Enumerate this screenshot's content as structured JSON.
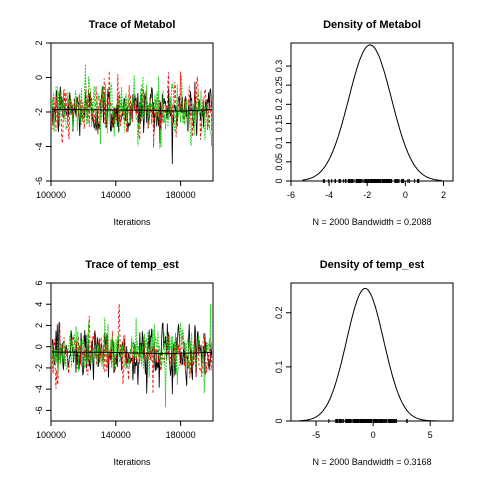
{
  "chart_data": [
    {
      "type": "line",
      "title": "Trace of Metabol",
      "xlabel": "Iterations",
      "xlim": [
        100000,
        200000
      ],
      "ylim": [
        -6,
        2
      ],
      "x_ticks": [
        100000,
        140000,
        180000
      ],
      "y_ticks": [
        -6,
        -4,
        -2,
        0,
        2
      ],
      "series": [
        {
          "chain": 1,
          "color": "#000000",
          "center": -1.9,
          "spread": 0.95
        },
        {
          "chain": 2,
          "color": "#ff0000",
          "center": -1.9,
          "spread": 0.95
        },
        {
          "chain": 3,
          "color": "#00cc00",
          "center": -1.9,
          "spread": 0.95
        }
      ],
      "running_mean": {
        "color": "#000000",
        "points": [
          [
            100000,
            -1.85
          ],
          [
            160000,
            -1.9
          ],
          [
            180000,
            -1.95
          ],
          [
            200000,
            -1.85
          ]
        ]
      }
    },
    {
      "type": "line",
      "title": "Density of Metabol",
      "xlabel": "N = 2000   Bandwidth = 0.2088",
      "xlim": [
        -6,
        2.5
      ],
      "ylim": [
        0,
        0.36
      ],
      "x_ticks": [
        -6,
        -4,
        -2,
        0,
        2
      ],
      "y_ticks": [
        0.0,
        0.05,
        0.1,
        0.15,
        0.2,
        0.25,
        0.3
      ],
      "density": {
        "mean": -1.85,
        "sd": 1.12,
        "peak": 0.355,
        "from": -5.4,
        "to": 1.9
      },
      "rug": {
        "from": -5.2,
        "to": 1.8
      }
    },
    {
      "type": "line",
      "title": "Trace of temp_est",
      "xlabel": "Iterations",
      "xlim": [
        100000,
        200000
      ],
      "ylim": [
        -7,
        6
      ],
      "x_ticks": [
        100000,
        140000,
        180000
      ],
      "y_ticks": [
        -6,
        -4,
        -2,
        0,
        2,
        4,
        6
      ],
      "series": [
        {
          "chain": 1,
          "color": "#000000",
          "center": -0.6,
          "spread": 1.5
        },
        {
          "chain": 2,
          "color": "#ff0000",
          "center": -0.6,
          "spread": 1.5
        },
        {
          "chain": 3,
          "color": "#00cc00",
          "center": -0.6,
          "spread": 1.5
        }
      ],
      "running_mean": {
        "color": "#000000",
        "points": [
          [
            100000,
            -0.5
          ],
          [
            140000,
            -0.55
          ],
          [
            170000,
            -0.65
          ],
          [
            200000,
            -0.55
          ]
        ]
      }
    },
    {
      "type": "line",
      "title": "Density of temp_est",
      "xlabel": "N = 2000   Bandwidth = 0.3168",
      "xlim": [
        -7.2,
        7
      ],
      "ylim": [
        0,
        0.255
      ],
      "x_ticks": [
        -5,
        0,
        5
      ],
      "y_ticks": [
        0.0,
        0.1,
        0.2
      ],
      "density": {
        "mean": -0.7,
        "sd": 1.63,
        "peak": 0.245,
        "from": -6.5,
        "to": 5.8
      },
      "rug": {
        "from": -6.3,
        "to": 5.7
      }
    }
  ]
}
